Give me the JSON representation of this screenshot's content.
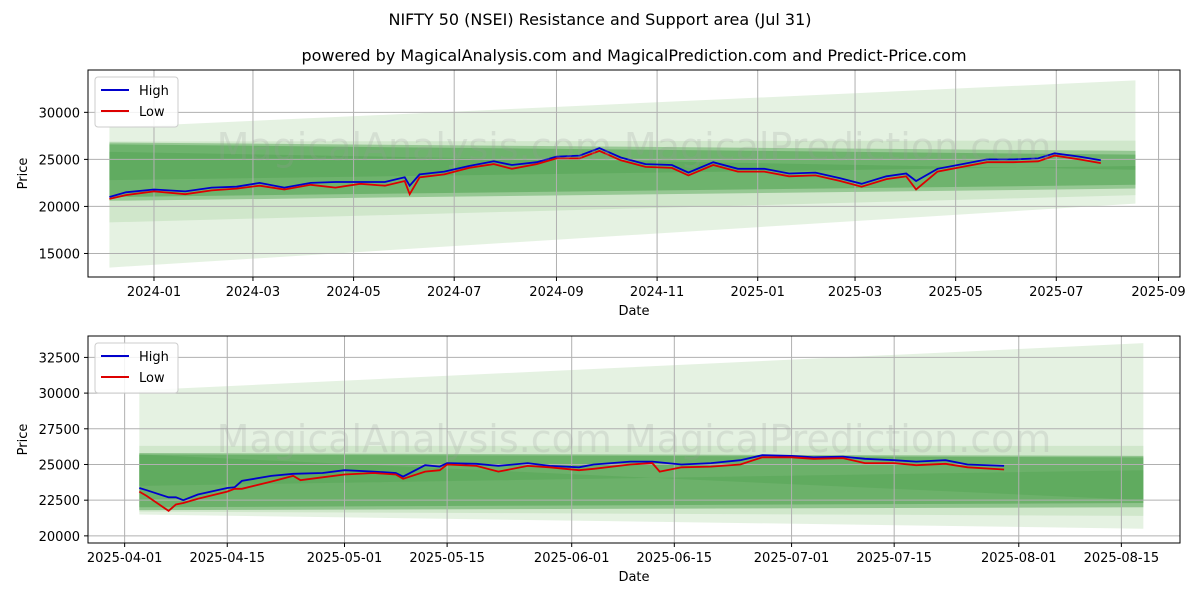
{
  "suptitle": "NIFTY 50 (NSEI) Resistance and Support area (Jul 31)",
  "watermark": "MagicalAnalysis.com    MagicalPrediction.com",
  "colors": {
    "high": "#0000cc",
    "low": "#dd0000",
    "band_dark": "#4fa24f",
    "band_light": "#a8d5a0",
    "grid": "#b0b0b0"
  },
  "chart_data": [
    {
      "type": "line",
      "title": "powered by MagicalAnalysis.com and MagicalPrediction.com and Predict-Price.com",
      "xlabel": "Date",
      "ylabel": "Price",
      "x_ticks": [
        "2024-01",
        "2024-03",
        "2024-05",
        "2024-07",
        "2024-09",
        "2024-11",
        "2025-01",
        "2025-03",
        "2025-05",
        "2025-07",
        "2025-09"
      ],
      "y_ticks": [
        "15000",
        "20000",
        "25000",
        "30000"
      ],
      "ylim": [
        12500,
        34500
      ],
      "legend": {
        "placement": "top-left",
        "entries": [
          "High",
          "Low"
        ]
      },
      "grid": true,
      "series": [
        {
          "name": "High",
          "points": [
            [
              "2023-12-05",
              21000
            ],
            [
              "2023-12-15",
              21500
            ],
            [
              "2024-01-01",
              21800
            ],
            [
              "2024-01-20",
              21600
            ],
            [
              "2024-02-05",
              22000
            ],
            [
              "2024-02-20",
              22100
            ],
            [
              "2024-03-05",
              22500
            ],
            [
              "2024-03-20",
              22000
            ],
            [
              "2024-04-05",
              22500
            ],
            [
              "2024-04-20",
              22600
            ],
            [
              "2024-05-05",
              22600
            ],
            [
              "2024-05-20",
              22600
            ],
            [
              "2024-06-01",
              23100
            ],
            [
              "2024-06-04",
              22200
            ],
            [
              "2024-06-10",
              23400
            ],
            [
              "2024-06-25",
              23700
            ],
            [
              "2024-07-10",
              24300
            ],
            [
              "2024-07-25",
              24800
            ],
            [
              "2024-08-05",
              24400
            ],
            [
              "2024-08-20",
              24700
            ],
            [
              "2024-09-01",
              25300
            ],
            [
              "2024-09-15",
              25400
            ],
            [
              "2024-09-27",
              26200
            ],
            [
              "2024-10-10",
              25200
            ],
            [
              "2024-10-25",
              24500
            ],
            [
              "2024-11-10",
              24400
            ],
            [
              "2024-11-20",
              23600
            ],
            [
              "2024-12-05",
              24700
            ],
            [
              "2024-12-20",
              24000
            ],
            [
              "2025-01-05",
              24000
            ],
            [
              "2025-01-20",
              23500
            ],
            [
              "2025-02-05",
              23600
            ],
            [
              "2025-02-20",
              23000
            ],
            [
              "2025-03-05",
              22400
            ],
            [
              "2025-03-20",
              23200
            ],
            [
              "2025-04-01",
              23500
            ],
            [
              "2025-04-07",
              22700
            ],
            [
              "2025-04-20",
              24000
            ],
            [
              "2025-05-05",
              24500
            ],
            [
              "2025-05-20",
              25000
            ],
            [
              "2025-06-05",
              25000
            ],
            [
              "2025-06-20",
              25100
            ],
            [
              "2025-06-30",
              25650
            ],
            [
              "2025-07-15",
              25300
            ],
            [
              "2025-07-28",
              24900
            ]
          ]
        },
        {
          "name": "Low",
          "points": [
            [
              "2023-12-05",
              20800
            ],
            [
              "2023-12-15",
              21200
            ],
            [
              "2024-01-01",
              21600
            ],
            [
              "2024-01-20",
              21300
            ],
            [
              "2024-02-05",
              21700
            ],
            [
              "2024-02-20",
              21900
            ],
            [
              "2024-03-05",
              22200
            ],
            [
              "2024-03-20",
              21800
            ],
            [
              "2024-04-05",
              22300
            ],
            [
              "2024-04-20",
              22000
            ],
            [
              "2024-05-05",
              22400
            ],
            [
              "2024-05-20",
              22200
            ],
            [
              "2024-06-01",
              22700
            ],
            [
              "2024-06-04",
              21300
            ],
            [
              "2024-06-10",
              23100
            ],
            [
              "2024-06-25",
              23400
            ],
            [
              "2024-07-10",
              24100
            ],
            [
              "2024-07-25",
              24500
            ],
            [
              "2024-08-05",
              24000
            ],
            [
              "2024-08-20",
              24500
            ],
            [
              "2024-09-01",
              25100
            ],
            [
              "2024-09-15",
              25100
            ],
            [
              "2024-09-27",
              25900
            ],
            [
              "2024-10-10",
              24900
            ],
            [
              "2024-10-25",
              24200
            ],
            [
              "2024-11-10",
              24100
            ],
            [
              "2024-11-20",
              23300
            ],
            [
              "2024-12-05",
              24400
            ],
            [
              "2024-12-20",
              23700
            ],
            [
              "2025-01-05",
              23700
            ],
            [
              "2025-01-20",
              23200
            ],
            [
              "2025-02-05",
              23300
            ],
            [
              "2025-02-20",
              22700
            ],
            [
              "2025-03-05",
              22100
            ],
            [
              "2025-03-20",
              22900
            ],
            [
              "2025-04-01",
              23200
            ],
            [
              "2025-04-07",
              21800
            ],
            [
              "2025-04-20",
              23700
            ],
            [
              "2025-05-05",
              24200
            ],
            [
              "2025-05-20",
              24700
            ],
            [
              "2025-06-05",
              24700
            ],
            [
              "2025-06-20",
              24800
            ],
            [
              "2025-06-30",
              25400
            ],
            [
              "2025-07-15",
              25000
            ],
            [
              "2025-07-28",
              24600
            ]
          ]
        }
      ]
    },
    {
      "type": "line",
      "xlabel": "Date",
      "ylabel": "Price",
      "x_ticks": [
        "2025-04-01",
        "2025-04-15",
        "2025-05-01",
        "2025-05-15",
        "2025-06-01",
        "2025-06-15",
        "2025-07-01",
        "2025-07-15",
        "2025-08-01",
        "2025-08-15"
      ],
      "y_ticks": [
        "20000",
        "22500",
        "25000",
        "27500",
        "30000",
        "32500"
      ],
      "ylim": [
        19500,
        34000
      ],
      "legend": {
        "placement": "top-left",
        "entries": [
          "High",
          "Low"
        ]
      },
      "grid": true,
      "series": [
        {
          "name": "High",
          "points": [
            [
              "2025-04-03",
              23350
            ],
            [
              "2025-04-04",
              23200
            ],
            [
              "2025-04-07",
              22700
            ],
            [
              "2025-04-08",
              22700
            ],
            [
              "2025-04-09",
              22500
            ],
            [
              "2025-04-11",
              22900
            ],
            [
              "2025-04-15",
              23350
            ],
            [
              "2025-04-16",
              23400
            ],
            [
              "2025-04-17",
              23850
            ],
            [
              "2025-04-21",
              24200
            ],
            [
              "2025-04-24",
              24350
            ],
            [
              "2025-04-28",
              24400
            ],
            [
              "2025-05-01",
              24600
            ],
            [
              "2025-05-05",
              24500
            ],
            [
              "2025-05-08",
              24400
            ],
            [
              "2025-05-09",
              24150
            ],
            [
              "2025-05-12",
              24950
            ],
            [
              "2025-05-14",
              24850
            ],
            [
              "2025-05-15",
              25100
            ],
            [
              "2025-05-19",
              25050
            ],
            [
              "2025-05-22",
              24900
            ],
            [
              "2025-05-26",
              25100
            ],
            [
              "2025-05-29",
              24900
            ],
            [
              "2025-06-02",
              24800
            ],
            [
              "2025-06-04",
              25000
            ],
            [
              "2025-06-09",
              25200
            ],
            [
              "2025-06-12",
              25200
            ],
            [
              "2025-06-16",
              25000
            ],
            [
              "2025-06-20",
              25100
            ],
            [
              "2025-06-24",
              25300
            ],
            [
              "2025-06-27",
              25650
            ],
            [
              "2025-07-01",
              25600
            ],
            [
              "2025-07-04",
              25500
            ],
            [
              "2025-07-08",
              25550
            ],
            [
              "2025-07-11",
              25400
            ],
            [
              "2025-07-15",
              25300
            ],
            [
              "2025-07-18",
              25200
            ],
            [
              "2025-07-22",
              25300
            ],
            [
              "2025-07-25",
              25000
            ],
            [
              "2025-07-30",
              24900
            ]
          ]
        },
        {
          "name": "Low",
          "points": [
            [
              "2025-04-03",
              23100
            ],
            [
              "2025-04-04",
              22800
            ],
            [
              "2025-04-07",
              21750
            ],
            [
              "2025-04-08",
              22200
            ],
            [
              "2025-04-09",
              22300
            ],
            [
              "2025-04-11",
              22600
            ],
            [
              "2025-04-15",
              23100
            ],
            [
              "2025-04-16",
              23300
            ],
            [
              "2025-04-17",
              23300
            ],
            [
              "2025-04-21",
              23800
            ],
            [
              "2025-04-24",
              24200
            ],
            [
              "2025-04-25",
              23900
            ],
            [
              "2025-04-28",
              24100
            ],
            [
              "2025-05-01",
              24300
            ],
            [
              "2025-05-05",
              24400
            ],
            [
              "2025-05-08",
              24300
            ],
            [
              "2025-05-09",
              24000
            ],
            [
              "2025-05-12",
              24500
            ],
            [
              "2025-05-14",
              24600
            ],
            [
              "2025-05-15",
              25000
            ],
            [
              "2025-05-19",
              24900
            ],
            [
              "2025-05-22",
              24500
            ],
            [
              "2025-05-26",
              24900
            ],
            [
              "2025-05-29",
              24800
            ],
            [
              "2025-06-02",
              24600
            ],
            [
              "2025-06-04",
              24700
            ],
            [
              "2025-06-09",
              25000
            ],
            [
              "2025-06-12",
              25100
            ],
            [
              "2025-06-13",
              24500
            ],
            [
              "2025-06-16",
              24800
            ],
            [
              "2025-06-20",
              24850
            ],
            [
              "2025-06-24",
              25000
            ],
            [
              "2025-06-27",
              25500
            ],
            [
              "2025-07-01",
              25500
            ],
            [
              "2025-07-04",
              25400
            ],
            [
              "2025-07-08",
              25450
            ],
            [
              "2025-07-11",
              25100
            ],
            [
              "2025-07-15",
              25100
            ],
            [
              "2025-07-18",
              24950
            ],
            [
              "2025-07-22",
              25050
            ],
            [
              "2025-07-25",
              24800
            ],
            [
              "2025-07-30",
              24650
            ]
          ]
        }
      ]
    }
  ]
}
